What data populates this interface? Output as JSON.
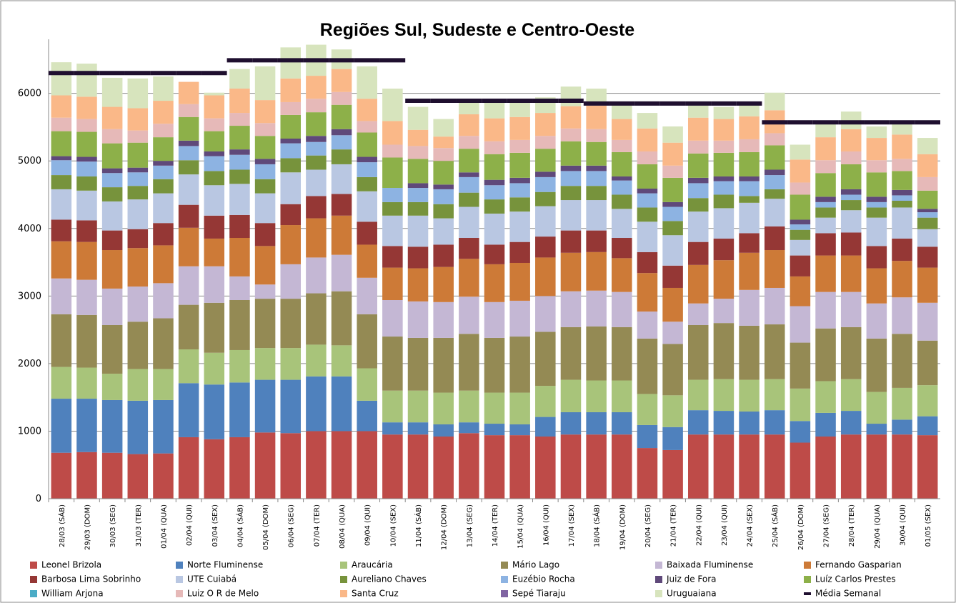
{
  "chart_data": {
    "type": "bar",
    "stacked": true,
    "title": "Regiões Sul, Sudeste e Centro-Oeste",
    "categories": [
      "28/03 (SÁB)",
      "29/03 (DOM)",
      "30/03 (SEG)",
      "31/03 (TER)",
      "01/04 (QUA)",
      "02/04 (QUI)",
      "03/04 (SEX)",
      "04/04 (SÁB)",
      "05/04 (DOM)",
      "06/04 (SEG)",
      "07/04 (TER)",
      "08/04 (QUA)",
      "09/04 (QUI)",
      "10/04 (SEX)",
      "11/04 (SÁB)",
      "12/04 (DOM)",
      "13/04 (SEG)",
      "14/04 (TER)",
      "15/04 (QUA)",
      "16/04 (QUI)",
      "17/04 (SEX)",
      "18/04 (SÁB)",
      "19/04 (DOM)",
      "20/04 (SEG)",
      "21/04 (TER)",
      "22/04 (QUI)",
      "23/04 (QUI)",
      "24/04 (SEX)",
      "25/04 (SÁB)",
      "26/04 (DOM)",
      "27/04 (SEG)",
      "28/04 (TER)",
      "29/04 (QUA)",
      "30/04 (QUI)",
      "01/05 (SEX)"
    ],
    "ylim": [
      0,
      6800
    ],
    "yticks": [
      0,
      1000,
      2000,
      3000,
      4000,
      5000,
      6000
    ],
    "grid": true,
    "series": [
      {
        "name": "Leonel Brizola",
        "color": "#be4b48",
        "values": [
          680,
          690,
          680,
          660,
          670,
          910,
          880,
          910,
          980,
          970,
          1000,
          1000,
          1000,
          950,
          950,
          920,
          970,
          940,
          940,
          920,
          950,
          950,
          950,
          750,
          720,
          950,
          950,
          950,
          950,
          830,
          920,
          950,
          950,
          950,
          940
        ]
      },
      {
        "name": "Norte Fluminense",
        "color": "#4f81bd",
        "values": [
          800,
          790,
          780,
          790,
          790,
          800,
          810,
          810,
          780,
          790,
          810,
          810,
          450,
          180,
          180,
          180,
          160,
          170,
          160,
          290,
          330,
          330,
          330,
          340,
          340,
          360,
          350,
          340,
          360,
          320,
          350,
          350,
          160,
          220,
          280
        ]
      },
      {
        "name": "Araucária",
        "color": "#a8c47a",
        "values": [
          470,
          460,
          390,
          470,
          460,
          500,
          470,
          480,
          470,
          470,
          470,
          460,
          480,
          470,
          470,
          470,
          470,
          460,
          470,
          460,
          480,
          470,
          470,
          460,
          470,
          450,
          470,
          470,
          460,
          480,
          470,
          470,
          470,
          470,
          460
        ]
      },
      {
        "name": "Mário Lago",
        "color": "#948a54",
        "values": [
          780,
          780,
          720,
          700,
          750,
          660,
          740,
          740,
          730,
          730,
          760,
          800,
          800,
          800,
          780,
          810,
          840,
          810,
          830,
          800,
          780,
          800,
          790,
          820,
          760,
          810,
          830,
          800,
          810,
          680,
          780,
          770,
          790,
          800,
          660
        ]
      },
      {
        "name": "Baixada Fluminense",
        "color": "#c4b7d4",
        "values": [
          530,
          520,
          540,
          520,
          520,
          570,
          540,
          350,
          210,
          510,
          530,
          540,
          540,
          540,
          540,
          530,
          550,
          530,
          530,
          530,
          530,
          530,
          520,
          400,
          330,
          320,
          360,
          530,
          540,
          540,
          540,
          520,
          520,
          540,
          560
        ]
      },
      {
        "name": "Fernando Gasparian",
        "color": "#cd7a37",
        "values": [
          550,
          560,
          570,
          570,
          560,
          570,
          410,
          570,
          570,
          580,
          580,
          580,
          490,
          480,
          490,
          520,
          560,
          560,
          560,
          570,
          570,
          570,
          500,
          570,
          500,
          570,
          570,
          550,
          560,
          440,
          540,
          540,
          520,
          540,
          520
        ]
      },
      {
        "name": "Barbosa Lima Sobrinho",
        "color": "#953735",
        "values": [
          320,
          320,
          290,
          280,
          330,
          340,
          340,
          340,
          340,
          310,
          330,
          320,
          340,
          320,
          320,
          330,
          310,
          290,
          310,
          310,
          330,
          320,
          300,
          310,
          330,
          340,
          320,
          290,
          350,
          310,
          330,
          340,
          330,
          330,
          310
        ]
      },
      {
        "name": "UTE Cuiabá",
        "color": "#b9c7e2",
        "values": [
          450,
          440,
          430,
          440,
          440,
          450,
          450,
          460,
          440,
          470,
          390,
          440,
          450,
          450,
          460,
          390,
          460,
          460,
          450,
          450,
          450,
          450,
          430,
          450,
          450,
          450,
          450,
          450,
          410,
          230,
          230,
          330,
          420,
          460,
          260
        ]
      },
      {
        "name": "Aureliano Chaves",
        "color": "#77933c",
        "values": [
          210,
          210,
          210,
          200,
          210,
          210,
          210,
          210,
          210,
          210,
          210,
          220,
          210,
          200,
          200,
          210,
          210,
          210,
          210,
          210,
          210,
          210,
          210,
          210,
          210,
          200,
          200,
          100,
          140,
          150,
          150,
          150,
          150,
          100,
          170
        ]
      },
      {
        "name": "Euzébio Rocha",
        "color": "#8db3e2",
        "values": [
          220,
          220,
          210,
          200,
          200,
          210,
          220,
          220,
          220,
          220,
          200,
          210,
          220,
          210,
          210,
          220,
          230,
          210,
          210,
          220,
          220,
          220,
          210,
          210,
          210,
          220,
          200,
          220,
          210,
          80,
          80,
          80,
          80,
          80,
          80
        ]
      },
      {
        "name": "Juiz de Fora",
        "color": "#5f497a",
        "values": [
          60,
          70,
          70,
          70,
          70,
          80,
          70,
          80,
          80,
          70,
          90,
          90,
          80,
          0,
          70,
          70,
          70,
          80,
          80,
          80,
          80,
          80,
          60,
          70,
          70,
          80,
          70,
          70,
          80,
          70,
          80,
          80,
          80,
          80,
          50
        ]
      },
      {
        "name": "Luíz Carlos Prestes",
        "color": "#8db049",
        "values": [
          370,
          370,
          370,
          370,
          350,
          350,
          300,
          350,
          340,
          350,
          350,
          360,
          360,
          450,
          360,
          350,
          350,
          380,
          370,
          340,
          360,
          350,
          360,
          360,
          360,
          360,
          350,
          360,
          360,
          370,
          350,
          370,
          360,
          280,
          270
        ]
      },
      {
        "name": "William Arjona",
        "color": "#4bacc6",
        "values": [
          0,
          0,
          0,
          0,
          0,
          0,
          0,
          0,
          0,
          0,
          0,
          0,
          0,
          0,
          0,
          0,
          0,
          0,
          0,
          0,
          0,
          0,
          0,
          0,
          0,
          0,
          0,
          0,
          0,
          0,
          0,
          0,
          0,
          0,
          0
        ]
      },
      {
        "name": "Luiz O R de Melo",
        "color": "#e6b9b8",
        "values": [
          200,
          190,
          210,
          180,
          200,
          190,
          190,
          190,
          190,
          190,
          200,
          190,
          170,
          190,
          190,
          190,
          190,
          190,
          190,
          190,
          190,
          190,
          180,
          190,
          180,
          190,
          180,
          190,
          180,
          180,
          190,
          190,
          180,
          180,
          200
        ]
      },
      {
        "name": "Santa Cruz",
        "color": "#fab888",
        "values": [
          330,
          330,
          330,
          330,
          340,
          330,
          340,
          360,
          340,
          350,
          340,
          340,
          330,
          350,
          240,
          170,
          320,
          340,
          340,
          340,
          330,
          350,
          310,
          340,
          340,
          340,
          320,
          340,
          340,
          340,
          340,
          330,
          330,
          360,
          340
        ]
      },
      {
        "name": "Sepé Tiaraju",
        "color": "#8064a2",
        "values": [
          0,
          0,
          0,
          0,
          0,
          0,
          0,
          0,
          0,
          0,
          0,
          0,
          0,
          0,
          0,
          0,
          0,
          0,
          0,
          0,
          0,
          0,
          0,
          0,
          0,
          0,
          0,
          0,
          0,
          0,
          0,
          0,
          0,
          0,
          0
        ]
      },
      {
        "name": "Uruguaiana",
        "color": "#d7e4bd",
        "values": [
          490,
          490,
          430,
          440,
          360,
          0,
          40,
          290,
          500,
          460,
          460,
          290,
          480,
          480,
          340,
          260,
          180,
          230,
          220,
          230,
          290,
          250,
          250,
          230,
          240,
          180,
          180,
          180,
          260,
          220,
          220,
          260,
          170,
          190,
          240
        ]
      },
      {
        "name": "Média Semanal",
        "type": "line",
        "color": "#1f0f2f",
        "values": [
          6300,
          6300,
          6300,
          6300,
          6300,
          6300,
          6300,
          6490,
          6490,
          6490,
          6490,
          6490,
          6490,
          6490,
          5890,
          5890,
          5890,
          5890,
          5890,
          5890,
          5890,
          5850,
          5850,
          5850,
          5850,
          5850,
          5850,
          5850,
          5570,
          5570,
          5570,
          5570,
          5570,
          5570,
          5570
        ]
      }
    ]
  }
}
